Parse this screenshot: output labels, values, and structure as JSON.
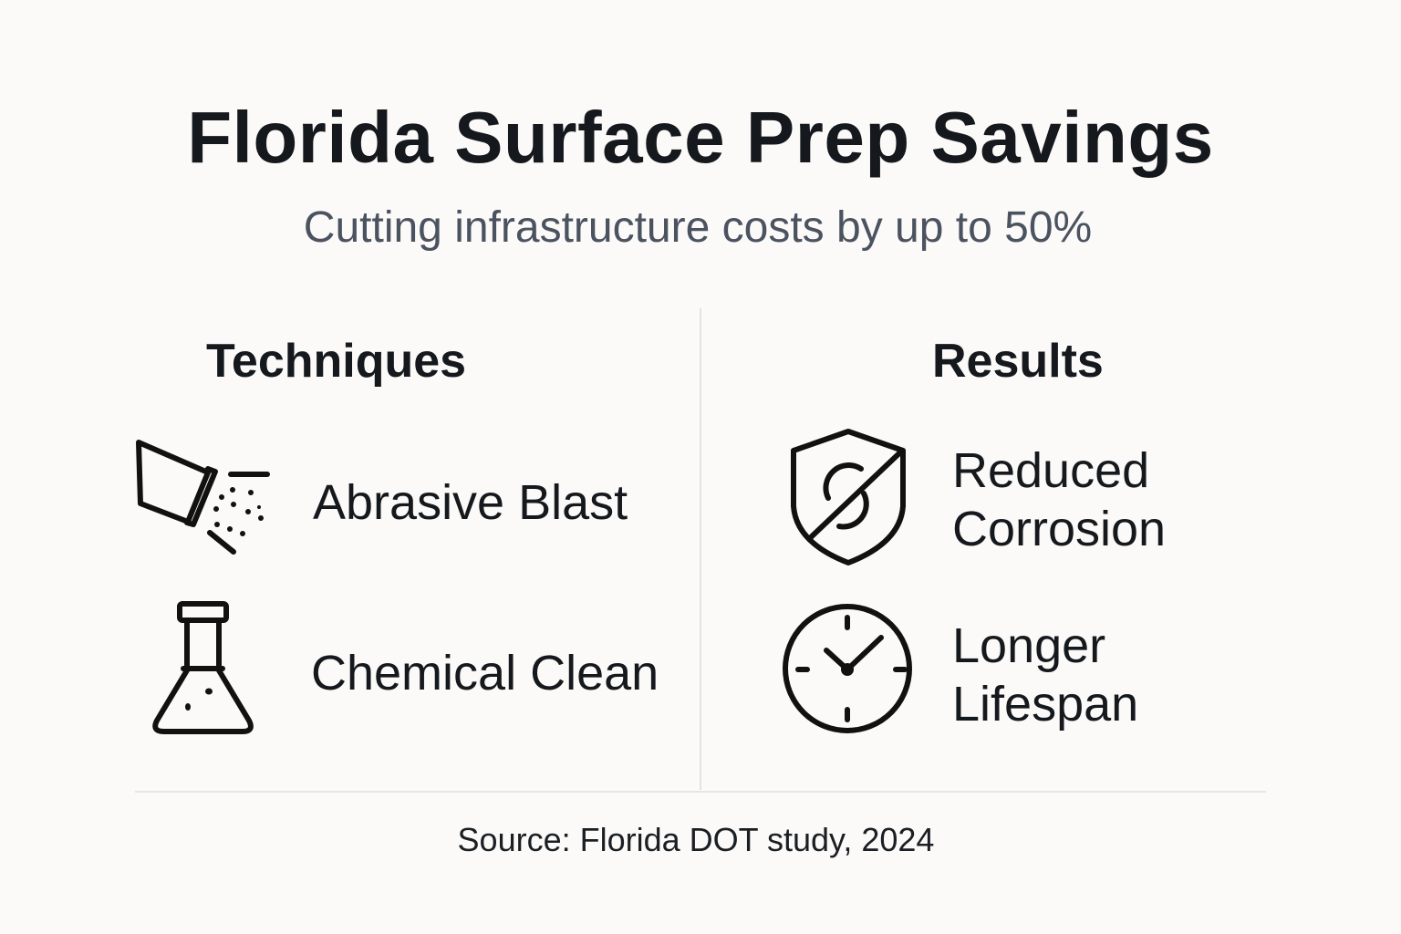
{
  "title": "Florida Surface Prep Savings",
  "subtitle": "Cutting infrastructure costs by up to 50%",
  "techniques": {
    "heading": "Techniques",
    "items": [
      {
        "label": "Abrasive Blast",
        "icon": "abrasive-blast-icon"
      },
      {
        "label": "Chemical Clean",
        "icon": "flask-icon"
      }
    ]
  },
  "results": {
    "heading": "Results",
    "items": [
      {
        "line1": "Reduced",
        "line2": "Corrosion",
        "icon": "shield-no-corrosion-icon"
      },
      {
        "line1": "Longer",
        "line2": "Lifespan",
        "icon": "clock-icon"
      }
    ]
  },
  "source": "Source: Florida DOT study, 2024",
  "colors": {
    "background": "#fbfaf8",
    "text": "#15191d",
    "subtitle": "#4b5360"
  }
}
